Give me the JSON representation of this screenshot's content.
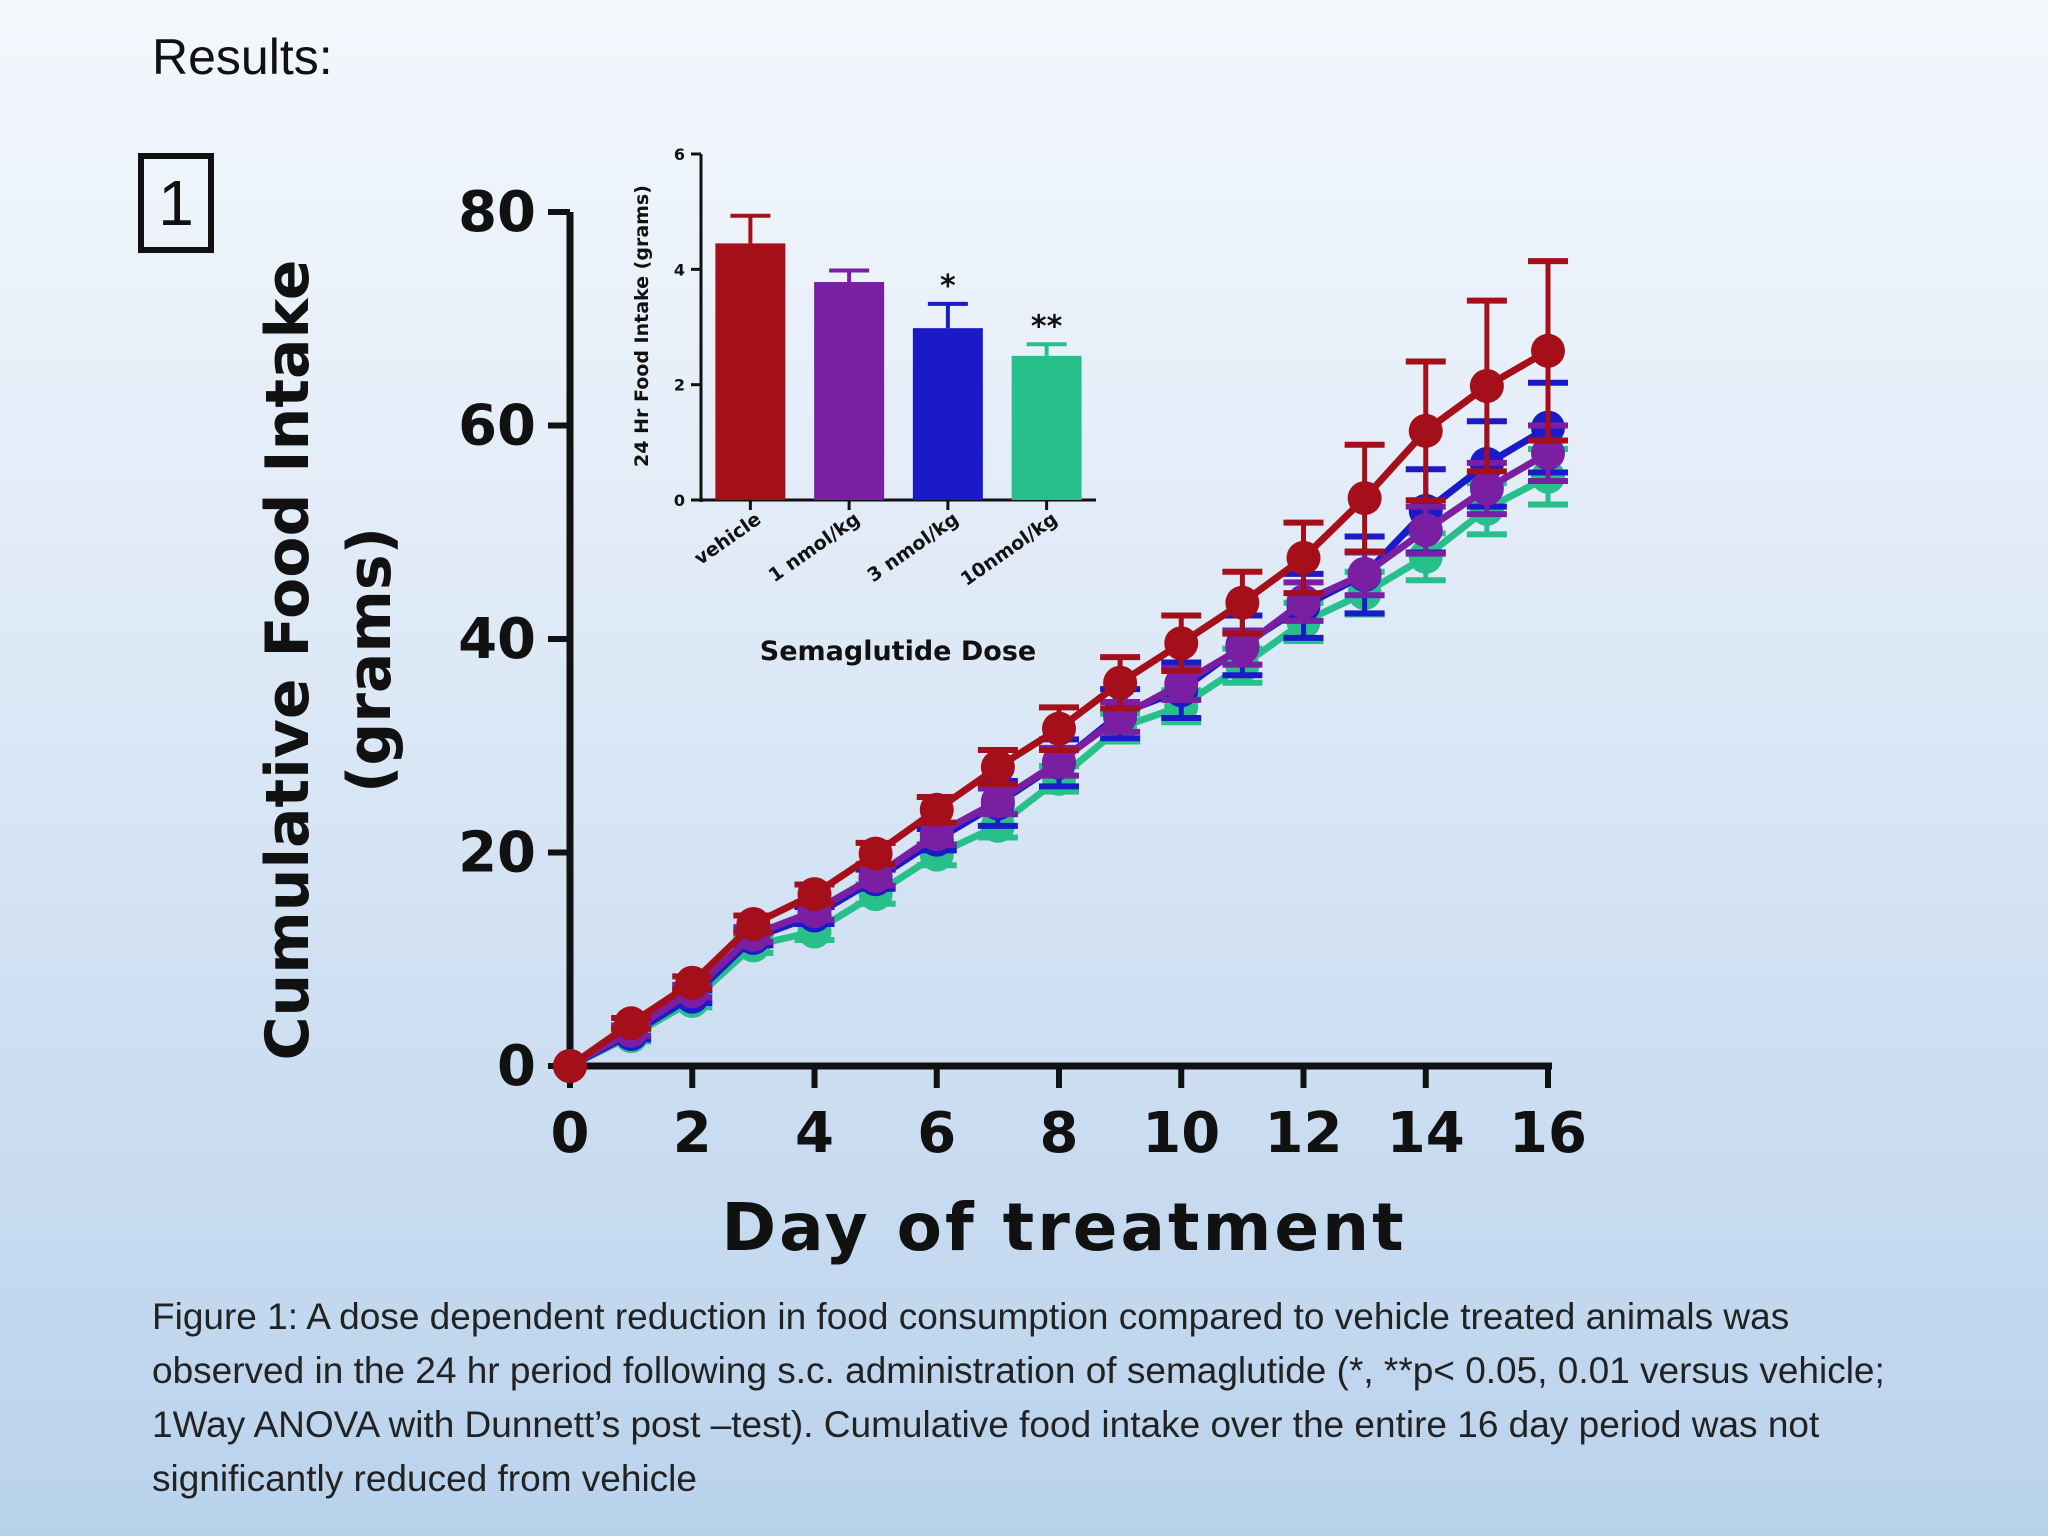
{
  "slide": {
    "heading": "Results:",
    "panel_label": "1",
    "caption": "Figure 1:  A dose dependent reduction in food consumption compared to vehicle treated animals was observed in the 24 hr period following s.c. administration of semaglutide (*, **p< 0.05, 0.01 versus vehicle; 1Way ANOVA with Dunnett’s post –test).  Cumulative food intake  over the entire 16 day period was not significantly reduced from vehicle"
  },
  "chart_data": [
    {
      "type": "line",
      "xlabel": "Day of treatment",
      "ylabel_lines": [
        "Cumulative Food Intake",
        "(grams)"
      ],
      "xlim": [
        0,
        16
      ],
      "ylim": [
        0,
        80
      ],
      "xticks": [
        0,
        2,
        4,
        6,
        8,
        10,
        12,
        14,
        16
      ],
      "yticks": [
        0,
        20,
        40,
        60,
        80
      ],
      "x": [
        0,
        1,
        2,
        3,
        4,
        5,
        6,
        7,
        8,
        9,
        10,
        11,
        12,
        13,
        14,
        15,
        16
      ],
      "series": [
        {
          "color": "#27c08a",
          "values": [
            0,
            2.8,
            6.1,
            11.3,
            12.6,
            16.1,
            19.8,
            22.5,
            26.9,
            31.7,
            33.7,
            37.5,
            41.6,
            44.3,
            47.7,
            52.2,
            55.2
          ],
          "errors": [
            0,
            0.5,
            0.6,
            0.7,
            0.8,
            0.9,
            1.0,
            1.1,
            1.2,
            1.3,
            1.5,
            1.6,
            1.8,
            2.0,
            2.2,
            2.4,
            2.6
          ]
        },
        {
          "color": "#1a1ac8",
          "values": [
            0,
            3.0,
            6.5,
            12.0,
            14.1,
            17.5,
            21.2,
            24.6,
            28.4,
            33.0,
            35.2,
            39.4,
            43.1,
            46.0,
            52.0,
            56.4,
            59.8
          ],
          "errors": [
            0,
            0.5,
            0.6,
            0.7,
            0.8,
            0.9,
            1.0,
            2.1,
            2.2,
            2.3,
            2.6,
            2.8,
            3.0,
            3.6,
            3.9,
            4.0,
            4.2
          ]
        },
        {
          "color": "#7a1fa2",
          "values": [
            0,
            3.3,
            7.0,
            12.3,
            14.5,
            17.8,
            21.7,
            24.8,
            28.5,
            32.7,
            35.8,
            39.2,
            43.5,
            46.1,
            50.2,
            54.1,
            57.4
          ],
          "errors": [
            0,
            0.5,
            0.6,
            0.7,
            0.8,
            0.9,
            1.0,
            1.2,
            1.3,
            1.4,
            1.5,
            1.6,
            1.8,
            2.0,
            2.2,
            2.4,
            2.6
          ]
        },
        {
          "color": "#a50f1a",
          "values": [
            0,
            4.0,
            7.8,
            13.3,
            16.1,
            19.9,
            24.0,
            28.0,
            31.6,
            35.9,
            39.6,
            43.4,
            47.6,
            53.2,
            59.5,
            63.7,
            67.0
          ],
          "errors": [
            0,
            0.5,
            0.6,
            0.8,
            0.9,
            1.0,
            1.2,
            1.6,
            2.0,
            2.4,
            2.6,
            2.9,
            3.3,
            5.0,
            6.5,
            8.0,
            8.4
          ]
        }
      ]
    },
    {
      "type": "bar",
      "xlabel": "Semaglutide Dose",
      "ylabel": "24 Hr Food Intake (grams)",
      "ylim": [
        0,
        6
      ],
      "yticks": [
        0,
        2,
        4,
        6
      ],
      "categories": [
        "vehicle",
        "1 nmol/kg",
        "3 nmol/kg",
        "10nmol/kg"
      ],
      "values": [
        4.45,
        3.78,
        2.98,
        2.5
      ],
      "errors": [
        0.48,
        0.2,
        0.42,
        0.2
      ],
      "colors": [
        "#a50f1a",
        "#7a1fa2",
        "#1a1ac8",
        "#27c08a"
      ],
      "annotations": [
        "",
        "",
        "*",
        "**"
      ]
    }
  ]
}
